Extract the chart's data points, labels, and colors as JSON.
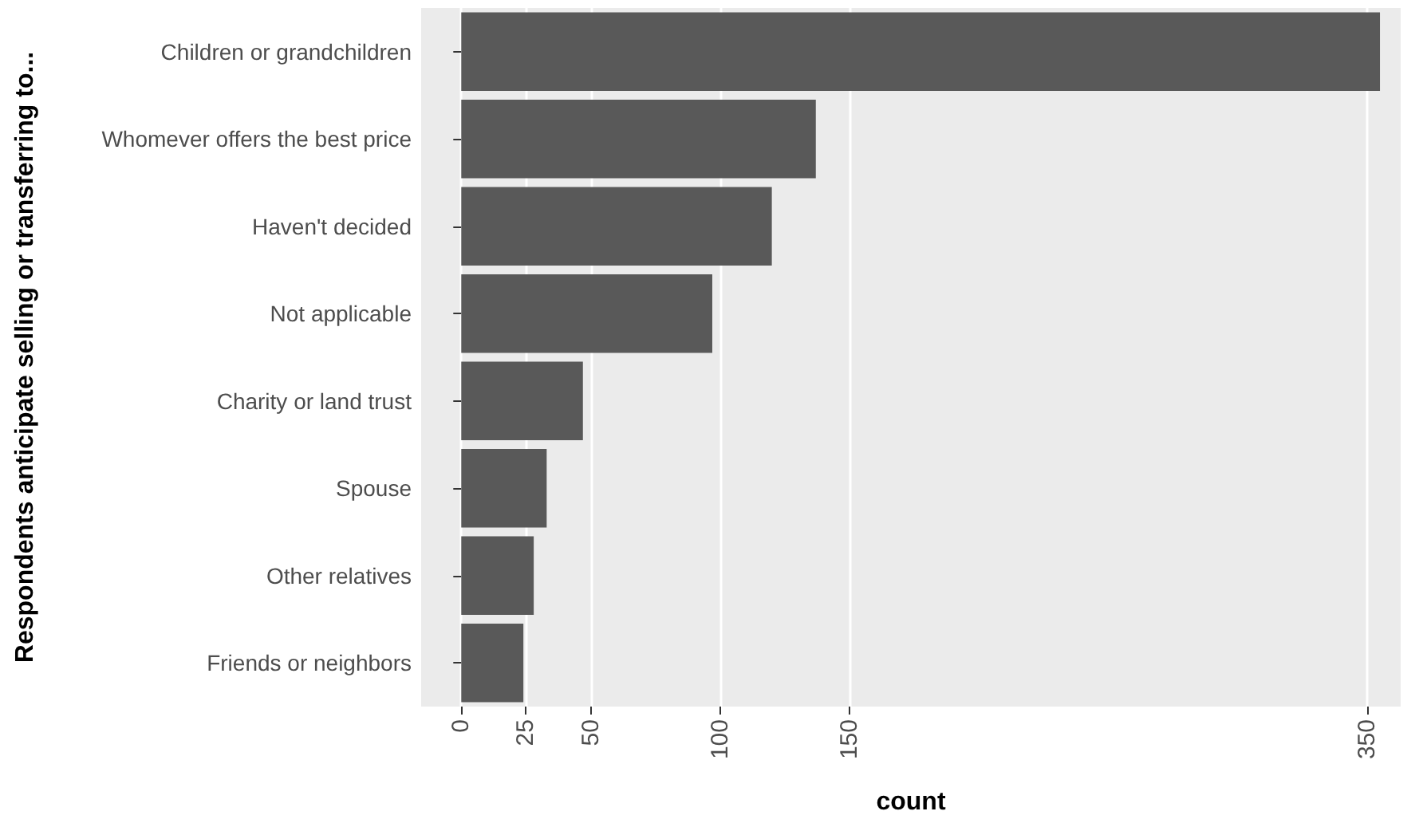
{
  "chart_data": {
    "type": "bar",
    "orientation": "horizontal",
    "xlabel": "count",
    "ylabel": "Respondents anticipate selling or transferring to...",
    "categories": [
      "Children or grandchildren",
      "Whomever offers the best price",
      "Haven't decided",
      "Not applicable",
      "Charity or land trust",
      "Spouse",
      "Other relatives",
      "Friends or neighbors"
    ],
    "values": [
      355,
      137,
      120,
      97,
      47,
      33,
      28,
      24
    ],
    "color": "#595959",
    "xlim": [
      -15.5,
      363
    ],
    "xticks": [
      0,
      25,
      50,
      100,
      150,
      350
    ],
    "grid": true
  }
}
